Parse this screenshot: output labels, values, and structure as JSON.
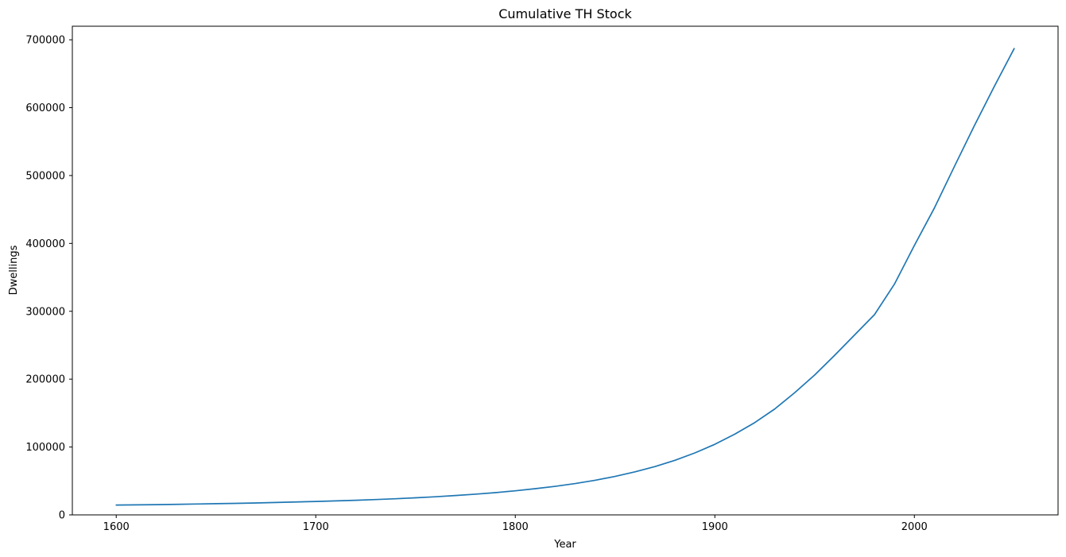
{
  "chart_data": {
    "type": "line",
    "title": "Cumulative TH Stock",
    "xlabel": "Year",
    "ylabel": "Dwellings",
    "xlim": [
      1578,
      2072
    ],
    "ylim": [
      0,
      720000
    ],
    "xticks": [
      1600,
      1700,
      1800,
      1900,
      2000
    ],
    "xtick_labels": [
      "1600",
      "1700",
      "1800",
      "1900",
      "2000"
    ],
    "yticks": [
      0,
      100000,
      200000,
      300000,
      400000,
      500000,
      600000,
      700000
    ],
    "ytick_labels": [
      "0",
      "100000",
      "200000",
      "300000",
      "400000",
      "500000",
      "600000",
      "700000"
    ],
    "grid": false,
    "line_color": "#1f77b4",
    "series": [
      {
        "x": [
          1600,
          1610,
          1620,
          1630,
          1640,
          1650,
          1660,
          1670,
          1680,
          1690,
          1700,
          1710,
          1720,
          1730,
          1740,
          1750,
          1760,
          1770,
          1780,
          1790,
          1800,
          1810,
          1820,
          1830,
          1840,
          1850,
          1860,
          1870,
          1880,
          1890,
          1900,
          1910,
          1920,
          1930,
          1940,
          1950,
          1960,
          1970,
          1980,
          1990,
          2000,
          2010,
          2020,
          2030,
          2040,
          2050
        ],
        "values": [
          14500,
          14800,
          15100,
          15500,
          16000,
          16500,
          17000,
          17600,
          18300,
          19000,
          19800,
          20600,
          21500,
          22600,
          23800,
          25200,
          26700,
          28500,
          30500,
          32800,
          35500,
          38600,
          42100,
          46200,
          51000,
          56700,
          63400,
          71200,
          80400,
          91300,
          104000,
          119000,
          136000,
          156000,
          180000,
          206000,
          235000,
          265000,
          295000,
          340000,
          397000,
          452000,
          513000,
          573000,
          631000,
          687000
        ]
      }
    ]
  }
}
